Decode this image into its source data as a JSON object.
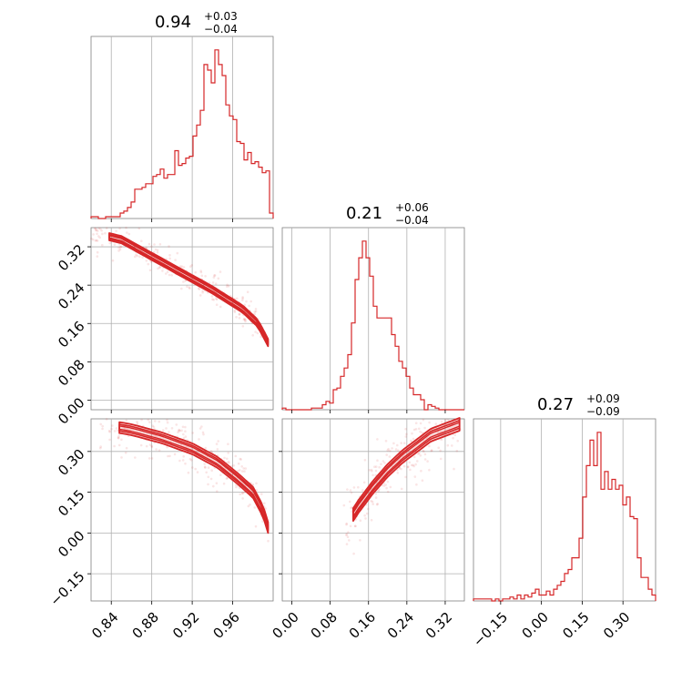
{
  "colors": {
    "series": "#d62728",
    "grid": "#b0b0b0",
    "frame": "#808080"
  },
  "chart_data": [
    {
      "panel": "hist-p1",
      "type": "histogram",
      "title": {
        "base": "0.94",
        "sup": "+0.03",
        "sub": "−0.04"
      },
      "xlim": [
        0.82,
        1.0
      ],
      "xticks": [
        0.84,
        0.88,
        0.92,
        0.96
      ],
      "grid": true,
      "bins": {
        "start": 0.82,
        "width": 0.0036,
        "values": [
          1,
          1,
          0,
          0,
          1,
          1,
          1,
          1,
          3,
          4,
          6,
          9,
          16,
          16,
          17,
          19,
          19,
          23,
          24,
          27,
          22,
          24,
          24,
          37,
          29,
          30,
          33,
          34,
          45,
          51,
          59,
          84,
          81,
          74,
          92,
          84,
          78,
          62,
          56,
          54,
          42,
          41,
          32,
          36,
          30,
          31,
          28,
          25,
          26,
          3
        ]
      }
    },
    {
      "panel": "hist-p2",
      "type": "histogram",
      "title": {
        "base": "0.21",
        "sup": "+0.06",
        "sub": "−0.04"
      },
      "xlim": [
        -0.02,
        0.36
      ],
      "xticks": [
        0.0,
        0.08,
        0.16,
        0.24,
        0.32
      ],
      "grid": true,
      "bins": {
        "start": -0.02,
        "width": 0.0076,
        "values": [
          1,
          0,
          0,
          0,
          0,
          0,
          0,
          0,
          1,
          1,
          1,
          3,
          5,
          4,
          12,
          13,
          20,
          25,
          33,
          52,
          78,
          91,
          101,
          91,
          80,
          62,
          55,
          55,
          55,
          55,
          45,
          38,
          29,
          25,
          20,
          13,
          9,
          9,
          6,
          0,
          3,
          2,
          1,
          0,
          0,
          0,
          0,
          0,
          0,
          0
        ]
      }
    },
    {
      "panel": "hist-p3",
      "type": "histogram",
      "title": {
        "base": "0.27",
        "sup": "+0.09",
        "sub": "−0.09"
      },
      "xlim": [
        -0.25,
        0.42
      ],
      "xticks": [
        -0.15,
        0.0,
        0.15,
        0.3
      ],
      "grid": true,
      "bins": {
        "start": -0.25,
        "width": 0.0134,
        "values": [
          1,
          1,
          1,
          1,
          1,
          0,
          1,
          0,
          1,
          1,
          2,
          1,
          3,
          1,
          3,
          2,
          4,
          6,
          3,
          3,
          5,
          3,
          6,
          8,
          10,
          14,
          16,
          22,
          22,
          32,
          53,
          69,
          82,
          69,
          86,
          57,
          66,
          57,
          62,
          57,
          59,
          49,
          53,
          43,
          42,
          22,
          12,
          12,
          6,
          3
        ]
      }
    },
    {
      "panel": "scatter-p1-p2",
      "type": "scatter",
      "xlim": [
        0.82,
        1.0
      ],
      "ylim": [
        -0.02,
        0.36
      ],
      "yticks": [
        0.0,
        0.08,
        0.16,
        0.24,
        0.32
      ],
      "grid": true,
      "ridge": {
        "x": [
          0.82,
          0.85,
          0.88,
          0.91,
          0.94,
          0.97,
          0.985,
          0.995
        ],
        "y": [
          0.35,
          0.335,
          0.3,
          0.265,
          0.23,
          0.19,
          0.16,
          0.12
        ]
      },
      "spread": 0.008
    },
    {
      "panel": "scatter-p1-p3",
      "type": "scatter",
      "xlim": [
        0.82,
        1.0
      ],
      "ylim": [
        -0.25,
        0.42
      ],
      "yticks": [
        -0.15,
        0.0,
        0.15,
        0.3
      ],
      "xticks": [
        0.84,
        0.88,
        0.92,
        0.96
      ],
      "grid": true,
      "ridge": {
        "x": [
          0.83,
          0.86,
          0.89,
          0.92,
          0.945,
          0.965,
          0.98,
          0.99,
          0.995
        ],
        "y": [
          0.4,
          0.38,
          0.35,
          0.31,
          0.26,
          0.2,
          0.15,
          0.08,
          0.02
        ]
      },
      "spread": 0.012
    },
    {
      "panel": "scatter-p2-p3",
      "type": "scatter",
      "xlim": [
        -0.02,
        0.36
      ],
      "ylim": [
        -0.25,
        0.42
      ],
      "xticks": [
        0.0,
        0.08,
        0.16,
        0.24,
        0.32
      ],
      "grid": true,
      "ridge": {
        "x": [
          0.11,
          0.14,
          0.17,
          0.2,
          0.23,
          0.26,
          0.29,
          0.32,
          0.35
        ],
        "y": [
          0.02,
          0.1,
          0.17,
          0.23,
          0.28,
          0.32,
          0.36,
          0.38,
          0.4
        ]
      },
      "spread": 0.014
    }
  ]
}
